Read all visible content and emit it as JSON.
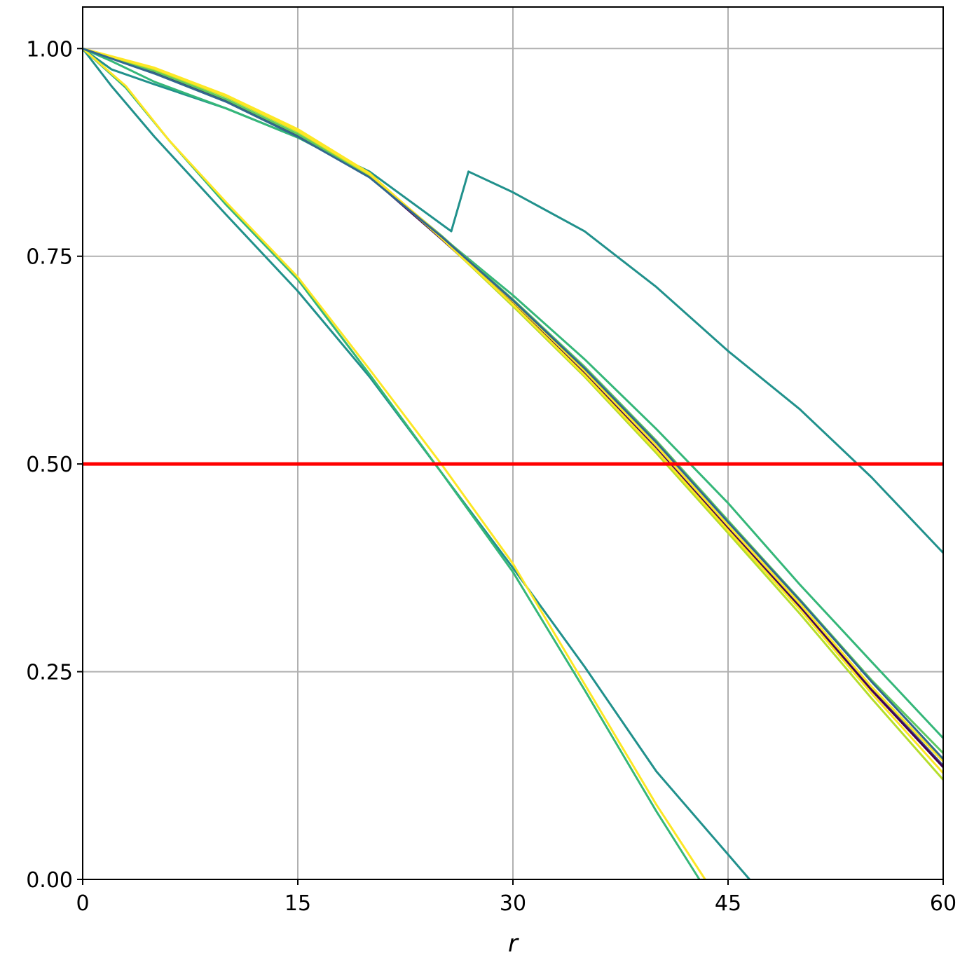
{
  "chart_data": {
    "type": "line",
    "title": "",
    "xlabel": "r",
    "ylabel": "",
    "xlim": [
      0,
      60
    ],
    "ylim": [
      0,
      1.05
    ],
    "xticks": [
      0,
      15,
      30,
      45,
      60
    ],
    "xtick_labels": [
      "0",
      "15",
      "30",
      "45",
      "60"
    ],
    "yticks": [
      0,
      0.25,
      0.5,
      0.75,
      1.0
    ],
    "ytick_labels": [
      "0.00",
      "0.25",
      "0.50",
      "0.75",
      "1.00"
    ],
    "grid": true,
    "legend": "none",
    "reference_line": {
      "y": 0.5,
      "color": "#ff0000"
    },
    "series": [
      {
        "color": "#21918c",
        "x": [
          0,
          2,
          5,
          10,
          15,
          20,
          25.7,
          26.9,
          30,
          35,
          40,
          45,
          50,
          55,
          60
        ],
        "y": [
          1.0,
          0.975,
          0.957,
          0.928,
          0.893,
          0.852,
          0.78,
          0.852,
          0.827,
          0.78,
          0.713,
          0.636,
          0.566,
          0.484,
          0.393
        ]
      },
      {
        "color": "#21918c",
        "x": [
          0,
          2,
          5,
          10,
          15,
          20,
          25,
          30,
          35,
          40,
          45,
          46.5
        ],
        "y": [
          1.0,
          0.955,
          0.894,
          0.8,
          0.708,
          0.605,
          0.49,
          0.375,
          0.256,
          0.13,
          0.03,
          0.0
        ]
      },
      {
        "color": "#35b779",
        "x": [
          0,
          3,
          6,
          10,
          15,
          20,
          25,
          30,
          35,
          40,
          43
        ],
        "y": [
          1.0,
          0.953,
          0.89,
          0.812,
          0.722,
          0.608,
          0.49,
          0.37,
          0.228,
          0.082,
          0.0
        ]
      },
      {
        "color": "#fde725",
        "x": [
          0,
          3,
          6,
          10,
          15,
          20,
          25,
          30,
          35,
          40,
          43.4
        ],
        "y": [
          1.0,
          0.955,
          0.89,
          0.815,
          0.725,
          0.614,
          0.5,
          0.38,
          0.235,
          0.09,
          0.0
        ]
      },
      {
        "color": "#35b779",
        "x": [
          0,
          2,
          5,
          10,
          15,
          20,
          25,
          30,
          35,
          40,
          45,
          50,
          55,
          60
        ],
        "y": [
          1.0,
          0.985,
          0.96,
          0.928,
          0.893,
          0.848,
          0.774,
          0.703,
          0.626,
          0.542,
          0.453,
          0.355,
          0.262,
          0.17
        ]
      },
      {
        "color": "#3b528b",
        "x": [
          0,
          5,
          10,
          15,
          20,
          25,
          30,
          35,
          40,
          45,
          50,
          55,
          60
        ],
        "y": [
          1.0,
          0.972,
          0.937,
          0.895,
          0.846,
          0.773,
          0.695,
          0.612,
          0.522,
          0.425,
          0.33,
          0.23,
          0.137
        ]
      },
      {
        "color": "#440154",
        "x": [
          0,
          5,
          10,
          15,
          20,
          25,
          30,
          35,
          40,
          45,
          50,
          55,
          60
        ],
        "y": [
          1.0,
          0.972,
          0.938,
          0.896,
          0.846,
          0.771,
          0.693,
          0.61,
          0.52,
          0.423,
          0.328,
          0.228,
          0.135
        ]
      },
      {
        "color": "#5ec962",
        "x": [
          0,
          5,
          10,
          15,
          20,
          25,
          30,
          35,
          40,
          45,
          50,
          55,
          60
        ],
        "y": [
          1.0,
          0.973,
          0.939,
          0.897,
          0.847,
          0.775,
          0.698,
          0.617,
          0.528,
          0.432,
          0.337,
          0.24,
          0.152
        ]
      },
      {
        "color": "#b5de2b",
        "x": [
          0,
          5,
          10,
          15,
          20,
          25,
          30,
          35,
          40,
          45,
          50,
          55,
          60
        ],
        "y": [
          1.0,
          0.975,
          0.942,
          0.9,
          0.848,
          0.772,
          0.69,
          0.605,
          0.513,
          0.417,
          0.32,
          0.218,
          0.12
        ]
      },
      {
        "color": "#fde725",
        "x": [
          0,
          5,
          10,
          15,
          20,
          25,
          30,
          35,
          40,
          45,
          50,
          55,
          60
        ],
        "y": [
          1.0,
          0.977,
          0.944,
          0.903,
          0.85,
          0.772,
          0.692,
          0.607,
          0.516,
          0.42,
          0.325,
          0.224,
          0.128
        ]
      },
      {
        "color": "#fde725",
        "x": [
          0,
          5,
          10,
          15,
          20,
          25,
          30,
          35,
          40,
          45,
          50,
          55,
          60
        ],
        "y": [
          1.0,
          0.976,
          0.943,
          0.901,
          0.849,
          0.774,
          0.696,
          0.612,
          0.522,
          0.426,
          0.332,
          0.232,
          0.142
        ]
      },
      {
        "color": "#31688e",
        "x": [
          0,
          5,
          10,
          15,
          20,
          25,
          30,
          35,
          40,
          45,
          50,
          55,
          60
        ],
        "y": [
          1.0,
          0.97,
          0.936,
          0.894,
          0.845,
          0.774,
          0.697,
          0.615,
          0.526,
          0.43,
          0.336,
          0.238,
          0.145
        ]
      }
    ]
  }
}
